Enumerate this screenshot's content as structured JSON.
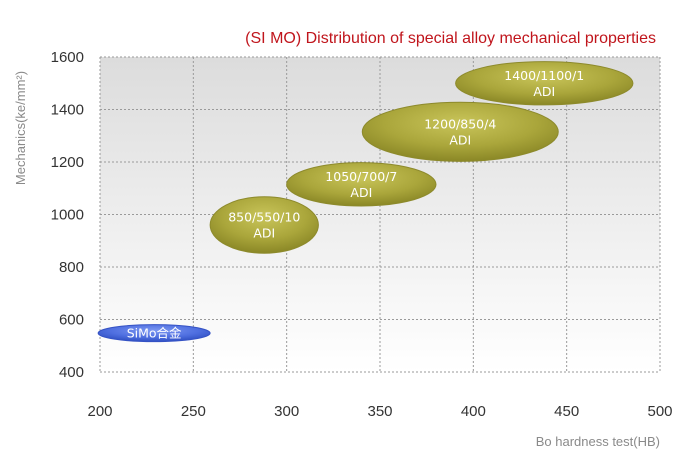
{
  "chart_data": {
    "type": "scatter",
    "title": "(SI MO) Distribution of special alloy mechanical properties",
    "xlabel": "Bo hardness test(HB)",
    "ylabel": "Mechanics(ke/mm²)",
    "xlim": [
      200,
      500
    ],
    "ylim": [
      400,
      1600
    ],
    "x_ticks": [
      "200",
      "250",
      "300",
      "350",
      "400",
      "450",
      "500"
    ],
    "y_ticks": [
      "400",
      "600",
      "800",
      "1000",
      "1200",
      "1400",
      "1600"
    ],
    "grid": true,
    "points": [
      {
        "label": "SiMo合金",
        "x": 229,
        "y": 548,
        "width": 60,
        "height": 65,
        "color": "#4f6fe0"
      },
      {
        "label": "850/550/10\nADI",
        "x": 288,
        "y": 960,
        "width": 58,
        "height": 215,
        "color": "#a9a53a"
      },
      {
        "label": "1050/700/7\nADI",
        "x": 340,
        "y": 1115,
        "width": 80,
        "height": 165,
        "color": "#a9a53a"
      },
      {
        "label": "1200/850/4\nADI",
        "x": 393,
        "y": 1315,
        "width": 105,
        "height": 225,
        "color": "#a9a53a"
      },
      {
        "label": "1400/1100/1\nADI",
        "x": 438,
        "y": 1500,
        "width": 95,
        "height": 165,
        "color": "#a9a53a"
      }
    ],
    "colors": {
      "title": "#c0151c",
      "grid": "#9a9a9a",
      "plot_bg_top": "#dedede",
      "plot_bg_bottom": "#ffffff"
    }
  }
}
